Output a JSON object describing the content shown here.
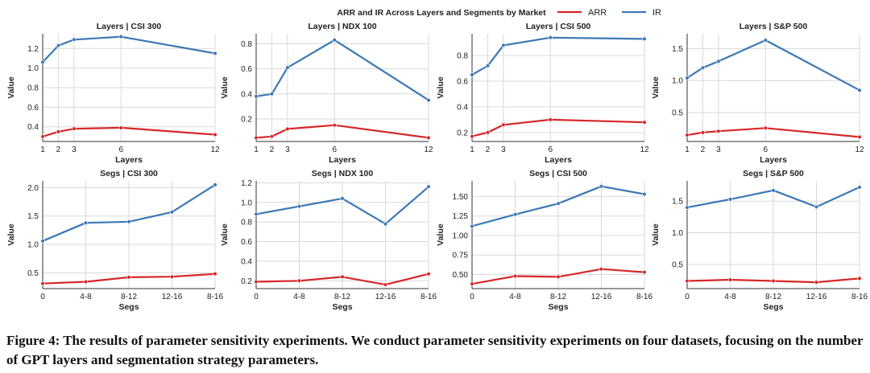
{
  "figure_title": "ARR and IR Across Layers and Segments by Market",
  "legend": [
    {
      "label": "ARR",
      "color": "#d62728"
    },
    {
      "label": "IR",
      "color": "#3b78b5"
    }
  ],
  "colors": {
    "ARR": "#d62728",
    "IR": "#3b78b5",
    "grid": "#d9d9d9",
    "axis": "#333333"
  },
  "caption": "Figure 4: The results of parameter sensitivity experiments. We conduct parameter sensitivity experiments on four datasets, focusing on the number of GPT layers and segmentation strategy parameters.",
  "chart_data": [
    {
      "type": "line",
      "title": "Layers | CSI 300",
      "xlabel": "Layers",
      "ylabel": "Value",
      "x": [
        1,
        2,
        3,
        6,
        12
      ],
      "x_scale": "numeric",
      "xlim": [
        1,
        12
      ],
      "xticks": [
        "1",
        "2",
        "3",
        "6",
        "12"
      ],
      "ylim": [
        0.25,
        1.35
      ],
      "yticks": [
        0.4,
        0.6,
        0.8,
        1.0,
        1.2
      ],
      "ytick_labels": [
        "0.4",
        "0.6",
        "0.8",
        "1.0",
        "1.2"
      ],
      "series": [
        {
          "name": "ARR",
          "values": [
            0.3,
            0.35,
            0.38,
            0.39,
            0.32
          ]
        },
        {
          "name": "IR",
          "values": [
            1.06,
            1.23,
            1.29,
            1.32,
            1.15
          ]
        }
      ]
    },
    {
      "type": "line",
      "title": "Layers | NDX 100",
      "xlabel": "Layers",
      "ylabel": "Value",
      "x": [
        1,
        2,
        3,
        6,
        12
      ],
      "x_scale": "numeric",
      "xlim": [
        1,
        12
      ],
      "xticks": [
        "1",
        "2",
        "3",
        "6",
        "12"
      ],
      "ylim": [
        0.02,
        0.88
      ],
      "yticks": [
        0.2,
        0.4,
        0.6,
        0.8
      ],
      "ytick_labels": [
        "0.2",
        "0.4",
        "0.6",
        "0.8"
      ],
      "series": [
        {
          "name": "ARR",
          "values": [
            0.05,
            0.06,
            0.12,
            0.15,
            0.05
          ]
        },
        {
          "name": "IR",
          "values": [
            0.38,
            0.4,
            0.61,
            0.83,
            0.35
          ]
        }
      ]
    },
    {
      "type": "line",
      "title": "Layers | CSI 500",
      "xlabel": "Layers",
      "ylabel": "Value",
      "x": [
        1,
        2,
        3,
        6,
        12
      ],
      "x_scale": "numeric",
      "xlim": [
        1,
        12
      ],
      "xticks": [
        "1",
        "2",
        "3",
        "6",
        "12"
      ],
      "ylim": [
        0.13,
        0.97
      ],
      "yticks": [
        0.2,
        0.4,
        0.6,
        0.8
      ],
      "ytick_labels": [
        "0.2",
        "0.4",
        "0.6",
        "0.8"
      ],
      "series": [
        {
          "name": "ARR",
          "values": [
            0.17,
            0.2,
            0.26,
            0.3,
            0.28
          ]
        },
        {
          "name": "IR",
          "values": [
            0.65,
            0.72,
            0.88,
            0.94,
            0.93
          ]
        }
      ]
    },
    {
      "type": "line",
      "title": "Layers | S&P 500",
      "xlabel": "Layers",
      "ylabel": "Value",
      "x": [
        1,
        2,
        3,
        6,
        12
      ],
      "x_scale": "numeric",
      "xlim": [
        1,
        12
      ],
      "xticks": [
        "1",
        "2",
        "3",
        "6",
        "12"
      ],
      "ylim": [
        0.05,
        1.73
      ],
      "yticks": [
        0.5,
        1.0,
        1.5
      ],
      "ytick_labels": [
        "0.5",
        "1.0",
        "1.5"
      ],
      "series": [
        {
          "name": "ARR",
          "values": [
            0.15,
            0.19,
            0.21,
            0.26,
            0.12
          ]
        },
        {
          "name": "IR",
          "values": [
            1.04,
            1.2,
            1.3,
            1.63,
            0.85
          ]
        }
      ]
    },
    {
      "type": "line",
      "title": "Segs | CSI 300",
      "xlabel": "Segs",
      "ylabel": "Value",
      "categories": [
        "0",
        "4-8",
        "8-12",
        "12-16",
        "8-16"
      ],
      "x_scale": "categorical",
      "ylim": [
        0.22,
        2.12
      ],
      "yticks": [
        0.5,
        1.0,
        1.5,
        2.0
      ],
      "ytick_labels": [
        "0.5",
        "1.0",
        "1.5",
        "2.0"
      ],
      "series": [
        {
          "name": "ARR",
          "values": [
            0.31,
            0.34,
            0.42,
            0.43,
            0.48
          ]
        },
        {
          "name": "IR",
          "values": [
            1.06,
            1.38,
            1.4,
            1.57,
            2.05
          ]
        }
      ]
    },
    {
      "type": "line",
      "title": "Segs | NDX 100",
      "xlabel": "Segs",
      "ylabel": "Value",
      "categories": [
        "0",
        "4-8",
        "8-12",
        "12-16",
        "8-16"
      ],
      "x_scale": "categorical",
      "ylim": [
        0.12,
        1.22
      ],
      "yticks": [
        0.2,
        0.4,
        0.6,
        0.8,
        1.0,
        1.2
      ],
      "ytick_labels": [
        "0.2",
        "0.4",
        "0.6",
        "0.8",
        "1.0",
        "1.2"
      ],
      "series": [
        {
          "name": "ARR",
          "values": [
            0.19,
            0.2,
            0.24,
            0.16,
            0.27
          ]
        },
        {
          "name": "IR",
          "values": [
            0.88,
            0.96,
            1.04,
            0.78,
            1.16
          ]
        }
      ]
    },
    {
      "type": "line",
      "title": "Segs | CSI 500",
      "xlabel": "Segs",
      "ylabel": "Value",
      "categories": [
        "0",
        "4-8",
        "8-12",
        "12-16",
        "8-16"
      ],
      "x_scale": "categorical",
      "ylim": [
        0.32,
        1.7
      ],
      "yticks": [
        0.5,
        0.75,
        1.0,
        1.25,
        1.5
      ],
      "ytick_labels": [
        "0.50",
        "0.75",
        "1.00",
        "1.25",
        "1.50"
      ],
      "series": [
        {
          "name": "ARR",
          "values": [
            0.38,
            0.48,
            0.47,
            0.57,
            0.53
          ]
        },
        {
          "name": "IR",
          "values": [
            1.12,
            1.27,
            1.41,
            1.63,
            1.53
          ]
        }
      ]
    },
    {
      "type": "line",
      "title": "Segs | S&P 500",
      "xlabel": "Segs",
      "ylabel": "Value",
      "categories": [
        "0",
        "4-8",
        "8-12",
        "12-16",
        "8-16"
      ],
      "x_scale": "categorical",
      "ylim": [
        0.12,
        1.82
      ],
      "yticks": [
        0.5,
        1.0,
        1.5
      ],
      "ytick_labels": [
        "0.5",
        "1.0",
        "1.5"
      ],
      "series": [
        {
          "name": "ARR",
          "values": [
            0.24,
            0.26,
            0.24,
            0.22,
            0.28
          ]
        },
        {
          "name": "IR",
          "values": [
            1.4,
            1.53,
            1.67,
            1.41,
            1.72
          ]
        }
      ]
    }
  ]
}
